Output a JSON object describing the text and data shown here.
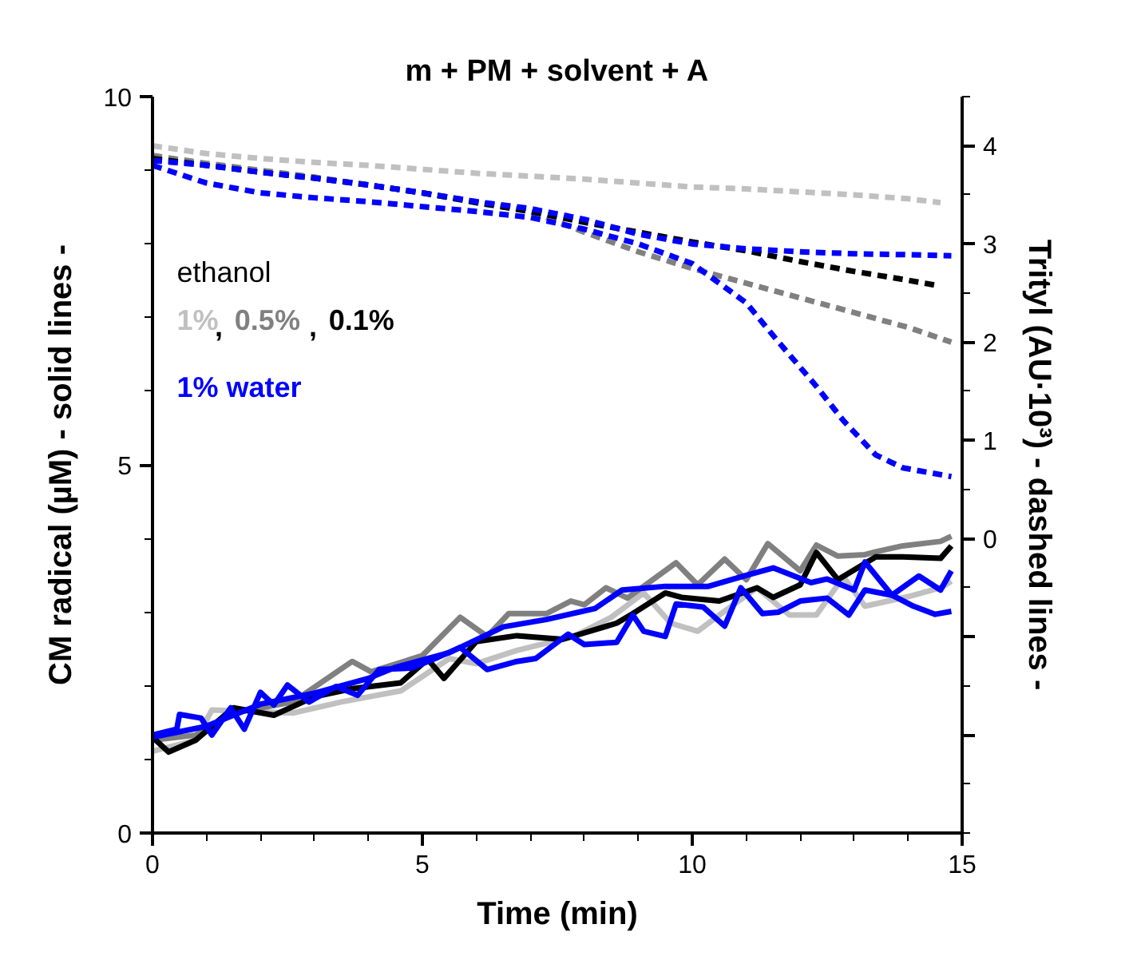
{
  "chart_data": {
    "type": "line",
    "title": "m + PM + solvent + A",
    "xlabel": "Time (min)",
    "ylabel": "CM radical (µM) - solid lines -",
    "y2label": "Trityl (AU·10³) - dashed lines -",
    "xlim": [
      0,
      15
    ],
    "xticks": [
      0,
      5,
      10,
      15
    ],
    "ylim": [
      0,
      10
    ],
    "yticks": [
      0,
      5,
      10
    ],
    "y2lim": [
      -3,
      4.5
    ],
    "y2ticks": [
      {
        "value": -2,
        "label": null
      },
      {
        "value": -1,
        "label": null
      },
      0,
      1,
      2,
      3,
      4
    ],
    "grid": false,
    "legend": "top left",
    "annotations": [
      "ethanol",
      ",",
      ","
    ],
    "series": [
      {
        "name": "1%",
        "color": "#c0c0c0",
        "line_style": "solid",
        "x": [
          0,
          0.8,
          1.1,
          2.6,
          3.5,
          4.6,
          5.5,
          6.0,
          6.75,
          7.8,
          8.5,
          9.1,
          9.6,
          10.1,
          10.5,
          11.2,
          11.8,
          12.3,
          12.8,
          13.2,
          14.0,
          14.6,
          14.8
        ],
        "values": [
          1.11,
          1.26,
          1.67,
          1.63,
          1.78,
          1.93,
          2.37,
          2.3,
          2.48,
          2.67,
          2.93,
          3.26,
          2.85,
          2.74,
          2.96,
          3.33,
          2.96,
          2.96,
          3.48,
          3.08,
          3.21,
          3.33,
          3.42
        ]
      },
      {
        "name": "0.5%",
        "color": "#808080",
        "line_style": "solid",
        "x": [
          0,
          0.8,
          1.5,
          2.6,
          3.7,
          4.05,
          5.0,
          5.7,
          6.2,
          6.6,
          7.3,
          7.75,
          8.0,
          8.4,
          8.8,
          9.7,
          10.1,
          10.6,
          11.0,
          11.4,
          12.0,
          12.3,
          12.7,
          13.2,
          13.4,
          13.9,
          14.6,
          14.8
        ],
        "values": [
          1.26,
          1.33,
          1.63,
          1.78,
          2.33,
          2.19,
          2.41,
          2.93,
          2.67,
          2.98,
          2.98,
          3.15,
          3.1,
          3.33,
          3.19,
          3.67,
          3.37,
          3.72,
          3.44,
          3.93,
          3.56,
          3.91,
          3.76,
          3.78,
          3.82,
          3.9,
          3.96,
          4.03
        ]
      },
      {
        "name": "0.1%",
        "color": "#000000",
        "line_style": "solid",
        "x": [
          0,
          0.3,
          0.8,
          1.5,
          2.25,
          3.0,
          3.7,
          4.6,
          5.1,
          5.4,
          6.0,
          6.75,
          7.6,
          8.6,
          8.9,
          9.5,
          9.8,
          10.5,
          11.2,
          11.5,
          12.0,
          12.3,
          12.7,
          13.4,
          13.9,
          14.6,
          14.8
        ],
        "values": [
          1.3,
          1.1,
          1.26,
          1.7,
          1.6,
          1.85,
          1.96,
          2.04,
          2.36,
          2.1,
          2.6,
          2.68,
          2.63,
          2.85,
          2.98,
          3.26,
          3.2,
          3.15,
          3.33,
          3.2,
          3.37,
          3.81,
          3.44,
          3.75,
          3.75,
          3.73,
          3.9
        ]
      },
      {
        "color": "#0000ff",
        "line_style": "solid",
        "x": [
          0,
          1,
          2,
          3,
          4,
          4.5,
          5.5,
          6.5,
          7.3,
          8.2,
          8.7,
          9.5,
          10.3,
          11.0,
          11.5,
          12.2,
          12.5,
          13.0,
          13.2,
          13.7,
          14.2,
          14.6,
          14.8
        ],
        "values": [
          1.3,
          1.45,
          1.75,
          1.9,
          2.1,
          2.25,
          2.45,
          2.8,
          2.9,
          3.05,
          3.3,
          3.35,
          3.35,
          3.5,
          3.6,
          3.4,
          3.45,
          3.3,
          3.68,
          3.23,
          3.49,
          3.3,
          3.56
        ]
      },
      {
        "name": "1% water",
        "color": "#0000ff",
        "line_style": "solid",
        "x": [
          0,
          0.45,
          0.5,
          0.9,
          1.1,
          1.45,
          1.7,
          2.0,
          2.25,
          2.5,
          2.9,
          3.4,
          3.8,
          4.2,
          4.8,
          5.3,
          5.7,
          6.2,
          6.75,
          7.1,
          7.7,
          8.0,
          8.6,
          8.9,
          9.1,
          9.5,
          9.7,
          10.2,
          10.6,
          10.9,
          11.3,
          11.6,
          12.0,
          12.5,
          12.9,
          13.2,
          13.7,
          14.1,
          14.5,
          14.8
        ],
        "values": [
          1.33,
          1.41,
          1.61,
          1.56,
          1.33,
          1.7,
          1.41,
          1.91,
          1.74,
          2.01,
          1.78,
          1.99,
          1.87,
          2.22,
          2.24,
          2.39,
          2.52,
          2.22,
          2.33,
          2.37,
          2.7,
          2.56,
          2.59,
          2.96,
          2.74,
          2.67,
          3.11,
          3.07,
          2.81,
          3.33,
          2.98,
          3.0,
          3.15,
          3.19,
          2.96,
          3.3,
          3.23,
          3.08,
          2.97,
          3.01
        ]
      },
      {
        "color": "#c0c0c0",
        "line_style": "dashed",
        "axis": "y2",
        "x": [
          0,
          1,
          2,
          3,
          4,
          5,
          6,
          7,
          8,
          9,
          10,
          11,
          12,
          13,
          14,
          14.6
        ],
        "values": [
          4.0,
          3.92,
          3.87,
          3.83,
          3.8,
          3.76,
          3.72,
          3.69,
          3.66,
          3.62,
          3.58,
          3.56,
          3.53,
          3.5,
          3.46,
          3.42
        ]
      },
      {
        "color": "#808080",
        "line_style": "dashed",
        "axis": "y2",
        "x": [
          0,
          1,
          2,
          3,
          4,
          5,
          6,
          7,
          8,
          9,
          10,
          11,
          12,
          13,
          14,
          14.8
        ],
        "values": [
          3.9,
          3.82,
          3.75,
          3.68,
          3.6,
          3.52,
          3.43,
          3.33,
          3.12,
          2.92,
          2.75,
          2.6,
          2.45,
          2.3,
          2.15,
          2.0
        ]
      },
      {
        "color": "#000000",
        "line_style": "dashed",
        "axis": "y2",
        "x": [
          0,
          1,
          2,
          3,
          4,
          5,
          6,
          7,
          8,
          9,
          10,
          11,
          12,
          13,
          14,
          14.5
        ],
        "values": [
          3.87,
          3.8,
          3.73,
          3.67,
          3.6,
          3.52,
          3.42,
          3.33,
          3.22,
          3.12,
          3.02,
          2.93,
          2.82,
          2.72,
          2.63,
          2.58
        ]
      },
      {
        "color": "#0000ff",
        "line_style": "dashed",
        "axis": "y2",
        "x": [
          0,
          1,
          2,
          3,
          4,
          5,
          6,
          7,
          8,
          9,
          10,
          11,
          12,
          13,
          14,
          14.8
        ],
        "values": [
          3.85,
          3.8,
          3.73,
          3.67,
          3.6,
          3.52,
          3.43,
          3.36,
          3.25,
          3.1,
          3.0,
          2.95,
          2.92,
          2.9,
          2.89,
          2.88
        ]
      },
      {
        "color": "#0000ff",
        "line_style": "dashed",
        "axis": "y2",
        "x": [
          0,
          1,
          2,
          3,
          4,
          5,
          6,
          7,
          8,
          9,
          10,
          11,
          11.6,
          12.3,
          12.8,
          13.4,
          13.9,
          14.8
        ],
        "values": [
          3.8,
          3.62,
          3.52,
          3.47,
          3.43,
          3.38,
          3.33,
          3.27,
          3.15,
          3.0,
          2.8,
          2.4,
          2.0,
          1.55,
          1.2,
          0.85,
          0.72,
          0.63
        ]
      }
    ]
  }
}
